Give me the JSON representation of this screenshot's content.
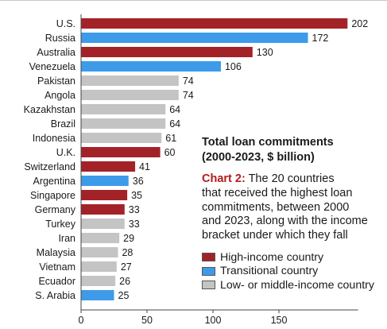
{
  "chart_data": {
    "type": "bar",
    "orientation": "horizontal",
    "title": "Total loan commitments (2000-2023, $ billion)",
    "title_lines": [
      "Total loan commitments",
      "(2000-2023, $ billion)"
    ],
    "description_label": "Chart 2:",
    "description_lines": [
      " The 20 countries",
      "that received the highest loan",
      "commitments, between 2000",
      "and 2023, along with the income",
      "bracket under which they fall"
    ],
    "categories": [
      "U.S.",
      "Russia",
      "Australia",
      "Venezuela",
      "Pakistan",
      "Angola",
      "Kazakhstan",
      "Brazil",
      "Indonesia",
      "U.K.",
      "Switzerland",
      "Argentina",
      "Singapore",
      "Germany",
      "Turkey",
      "Iran",
      "Malaysia",
      "Vietnam",
      "Ecuador",
      "S. Arabia"
    ],
    "values": [
      202,
      172,
      130,
      106,
      74,
      74,
      64,
      64,
      61,
      60,
      41,
      36,
      35,
      33,
      33,
      29,
      28,
      27,
      26,
      25
    ],
    "value_labels": [
      "202",
      "172",
      "130",
      "106",
      "74",
      "74",
      "64",
      "64",
      "61",
      "60",
      "41",
      "36",
      "35",
      "33",
      "33",
      "29",
      "28",
      "27",
      "26",
      "25"
    ],
    "groups": [
      "high",
      "transitional",
      "high",
      "transitional",
      "low",
      "low",
      "low",
      "low",
      "low",
      "high",
      "high",
      "transitional",
      "high",
      "high",
      "low",
      "low",
      "low",
      "low",
      "low",
      "transitional"
    ],
    "legend": [
      {
        "key": "high",
        "label": "High-income country",
        "color": "#a32227"
      },
      {
        "key": "transitional",
        "label": "Transitional country",
        "color": "#3d9be9"
      },
      {
        "key": "low",
        "label": "Low- or middle-income country",
        "color": "#c4c4c4"
      }
    ],
    "xticks": [
      0,
      50,
      100,
      150
    ],
    "xtick_labels": [
      "0",
      "50",
      "100",
      "150"
    ],
    "xlim": [
      0,
      210
    ],
    "grid": false,
    "legend_position": "right"
  }
}
